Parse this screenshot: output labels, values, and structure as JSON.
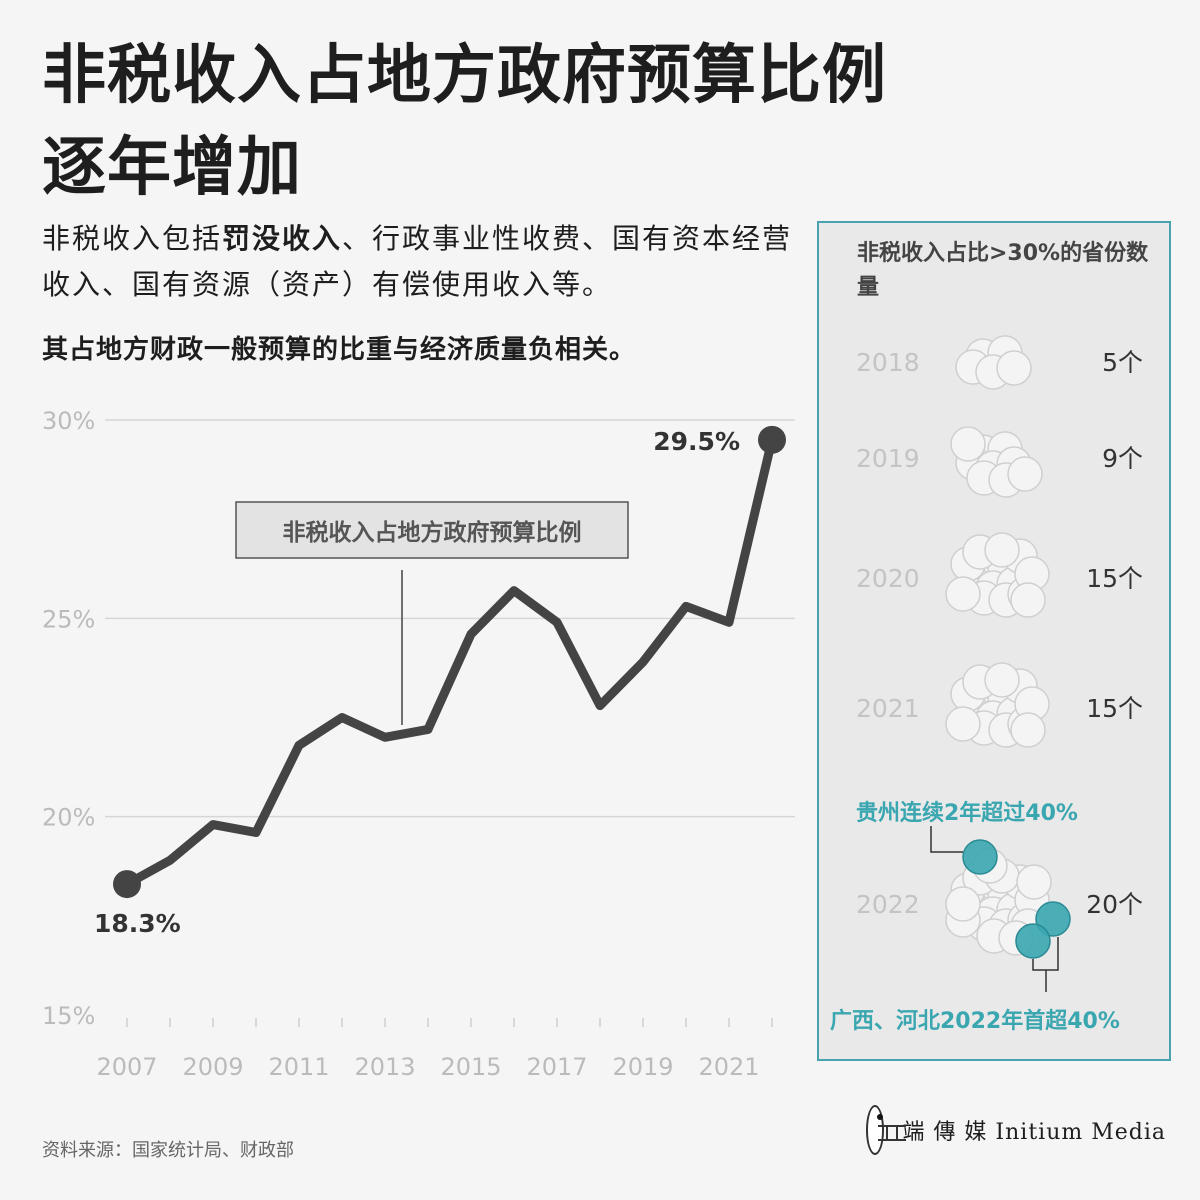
{
  "header": {
    "title_line1": "非税收入占地方政府预算比例",
    "title_line2": "逐年增加",
    "lede_part1": "非税收入包括",
    "lede_bold": "罚没收入",
    "lede_part2": "、行政事业性收费、国有资本经营收入、国有资源（资产）有偿使用收入等。",
    "subhead": "其占地方财政一般预算的比重与经济质量负相关。"
  },
  "colors": {
    "line": "#444444",
    "accent": "#3aa6b0",
    "grid": "#d6d6d6",
    "axis_text": "#bbbbbb"
  },
  "chart_data": [
    {
      "type": "line",
      "title": "",
      "series_label": "非税收入占地方政府预算比例",
      "x": [
        2007,
        2008,
        2009,
        2010,
        2011,
        2012,
        2013,
        2014,
        2015,
        2016,
        2017,
        2018,
        2019,
        2020,
        2021,
        2022
      ],
      "series": [
        {
          "name": "非税收入占地方政府预算比例",
          "values": [
            18.3,
            18.9,
            19.8,
            19.6,
            21.8,
            22.5,
            22.0,
            22.2,
            24.6,
            25.7,
            24.9,
            22.8,
            23.9,
            25.3,
            24.9,
            29.5
          ]
        }
      ],
      "ylim": [
        15,
        30
      ],
      "yticks": [
        "15%",
        "20%",
        "25%",
        "30%"
      ],
      "yticks_values": [
        15,
        20,
        25,
        30
      ],
      "xticks": [
        "2007",
        "2009",
        "2011",
        "2013",
        "2015",
        "2017",
        "2019",
        "2021"
      ],
      "annotations": {
        "first": "18.3%",
        "last": "29.5%"
      },
      "grid": true,
      "xlabel": "",
      "ylabel": ""
    },
    {
      "type": "bubble-count",
      "title": "非税收入占比>30%的省份数量",
      "rows": [
        {
          "year": "2018",
          "count": 5,
          "label": "5个"
        },
        {
          "year": "2019",
          "count": 9,
          "label": "9个"
        },
        {
          "year": "2020",
          "count": 15,
          "label": "15个"
        },
        {
          "year": "2021",
          "count": 15,
          "label": "15个"
        },
        {
          "year": "2022",
          "count": 20,
          "label": "20个"
        }
      ],
      "highlights": [
        {
          "text": "贵州连续2年超过40%"
        },
        {
          "text": "广西、河北2022年首超40%"
        }
      ]
    }
  ],
  "footer": {
    "source": "资料来源：国家统计局、财政部",
    "logo_text": "端 傳 媒  Initium Media"
  }
}
